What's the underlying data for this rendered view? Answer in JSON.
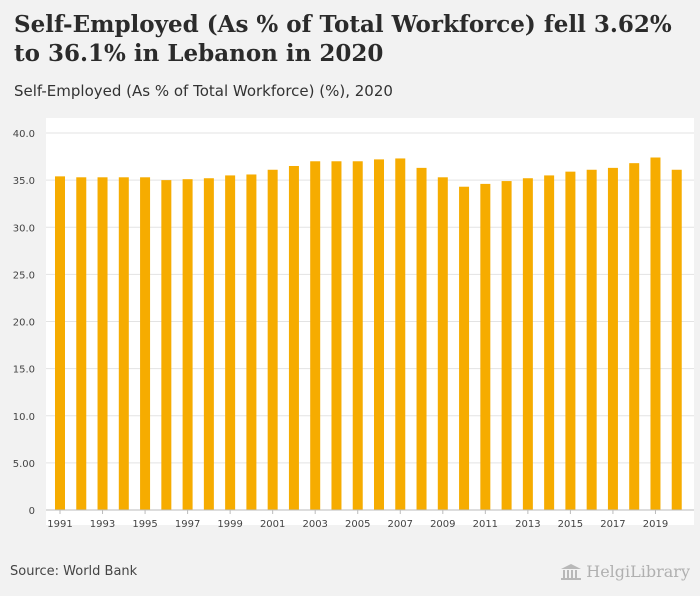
{
  "title": "Self-Employed (As % of Total Workforce) fell 3.62% to 36.1% in Lebanon in 2020",
  "subtitle": "Self-Employed (As % of Total Workforce) (%), 2020",
  "source": "Source: World Bank",
  "logo_text": "HelgiLibrary",
  "colors": {
    "bar": "#f6ac00",
    "grid": "#e3e3e3",
    "axis_text": "#444444"
  },
  "chart_data": {
    "type": "bar",
    "title": "Self-Employed (As % of Total Workforce) fell 3.62% to 36.1% in Lebanon in 2020",
    "subtitle": "Self-Employed (As % of Total Workforce) (%), 2020",
    "xlabel": "",
    "ylabel": "",
    "ylim": [
      0,
      40
    ],
    "yticks": [
      0,
      5,
      10,
      15,
      20,
      25,
      30,
      35,
      40
    ],
    "ytick_labels": [
      "0",
      "5.00",
      "10.0",
      "15.0",
      "20.0",
      "25.0",
      "30.0",
      "35.0",
      "40.0"
    ],
    "grid": true,
    "categories": [
      "1991",
      "1992",
      "1993",
      "1994",
      "1995",
      "1996",
      "1997",
      "1998",
      "1999",
      "2000",
      "2001",
      "2002",
      "2003",
      "2004",
      "2005",
      "2006",
      "2007",
      "2008",
      "2009",
      "2010",
      "2011",
      "2012",
      "2013",
      "2014",
      "2015",
      "2016",
      "2017",
      "2018",
      "2019",
      "2020"
    ],
    "xtick_labels": [
      "1991",
      "1993",
      "1995",
      "1997",
      "1999",
      "2001",
      "2003",
      "2005",
      "2007",
      "2009",
      "2011",
      "2013",
      "2015",
      "2017",
      "2019"
    ],
    "values": [
      35.4,
      35.3,
      35.3,
      35.3,
      35.3,
      35.0,
      35.1,
      35.2,
      35.5,
      35.6,
      36.1,
      36.5,
      37.0,
      37.0,
      37.0,
      37.2,
      37.3,
      36.3,
      35.3,
      34.3,
      34.6,
      34.9,
      35.2,
      35.5,
      35.9,
      36.1,
      36.3,
      36.8,
      37.4,
      36.1
    ]
  }
}
